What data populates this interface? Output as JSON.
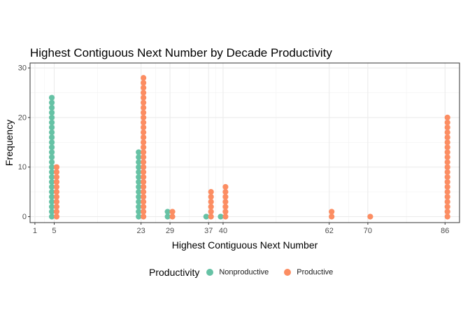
{
  "chart_data": {
    "type": "scatter",
    "title": "Highest Contiguous Next Number by Decade Productivity",
    "xlabel": "Highest Contiguous Next Number",
    "ylabel": "Frequency",
    "x_ticks": [
      1,
      5,
      23,
      29,
      37,
      40,
      62,
      70,
      86
    ],
    "y_ticks": [
      0,
      10,
      20,
      30
    ],
    "xlim": [
      0,
      89
    ],
    "ylim": [
      -1.2,
      31
    ],
    "grid": true,
    "legend_position": "bottom",
    "legend_title": "Productivity",
    "series": [
      {
        "name": "Nonproductive",
        "color": "#66c2a5",
        "offset": -0.5,
        "points": [
          {
            "x": 5,
            "frequency": 24
          },
          {
            "x": 23,
            "frequency": 13
          },
          {
            "x": 29,
            "frequency": 1
          },
          {
            "x": 37,
            "frequency": 0
          },
          {
            "x": 40,
            "frequency": 0
          }
        ]
      },
      {
        "name": "Productive",
        "color": "#fc8d62",
        "offset": 0.5,
        "points": [
          {
            "x": 5,
            "frequency": 10
          },
          {
            "x": 23,
            "frequency": 28
          },
          {
            "x": 29,
            "frequency": 1
          },
          {
            "x": 37,
            "frequency": 5
          },
          {
            "x": 40,
            "frequency": 6
          },
          {
            "x": 62,
            "frequency": 1
          },
          {
            "x": 70,
            "frequency": 0
          },
          {
            "x": 86,
            "frequency": 20
          }
        ]
      }
    ]
  }
}
